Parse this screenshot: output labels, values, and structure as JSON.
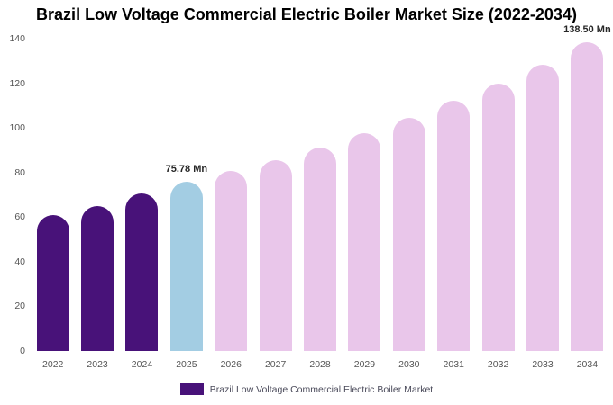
{
  "chart_data": {
    "type": "bar",
    "title": "Brazil Low Voltage Commercial Electric Boiler Market Size (2022-2034)",
    "categories": [
      "2022",
      "2023",
      "2024",
      "2025",
      "2026",
      "2027",
      "2028",
      "2029",
      "2030",
      "2031",
      "2032",
      "2033",
      "2034"
    ],
    "values": [
      61,
      65,
      70.5,
      75.78,
      80.5,
      85.5,
      91,
      97.5,
      104.5,
      112,
      120,
      128.5,
      138.5
    ],
    "unit": "Mn",
    "bar_colors": [
      "#481279",
      "#481279",
      "#481279",
      "#a3cde3",
      "#e9c6ea",
      "#e9c6ea",
      "#e9c6ea",
      "#e9c6ea",
      "#e9c6ea",
      "#e9c6ea",
      "#e9c6ea",
      "#e9c6ea",
      "#e9c6ea"
    ],
    "annotations": [
      {
        "index": 3,
        "text": "75.78 Mn"
      },
      {
        "index": 12,
        "text": "138.50 Mn"
      }
    ],
    "xlabel": "",
    "ylabel": "",
    "ylim": [
      0,
      140
    ],
    "yticks": [
      0,
      20,
      40,
      60,
      80,
      100,
      120,
      140
    ],
    "grid": false,
    "legend": {
      "position": "bottom",
      "label": "Brazil Low Voltage Commercial Electric Boiler Market",
      "swatch_color": "#481279"
    }
  }
}
